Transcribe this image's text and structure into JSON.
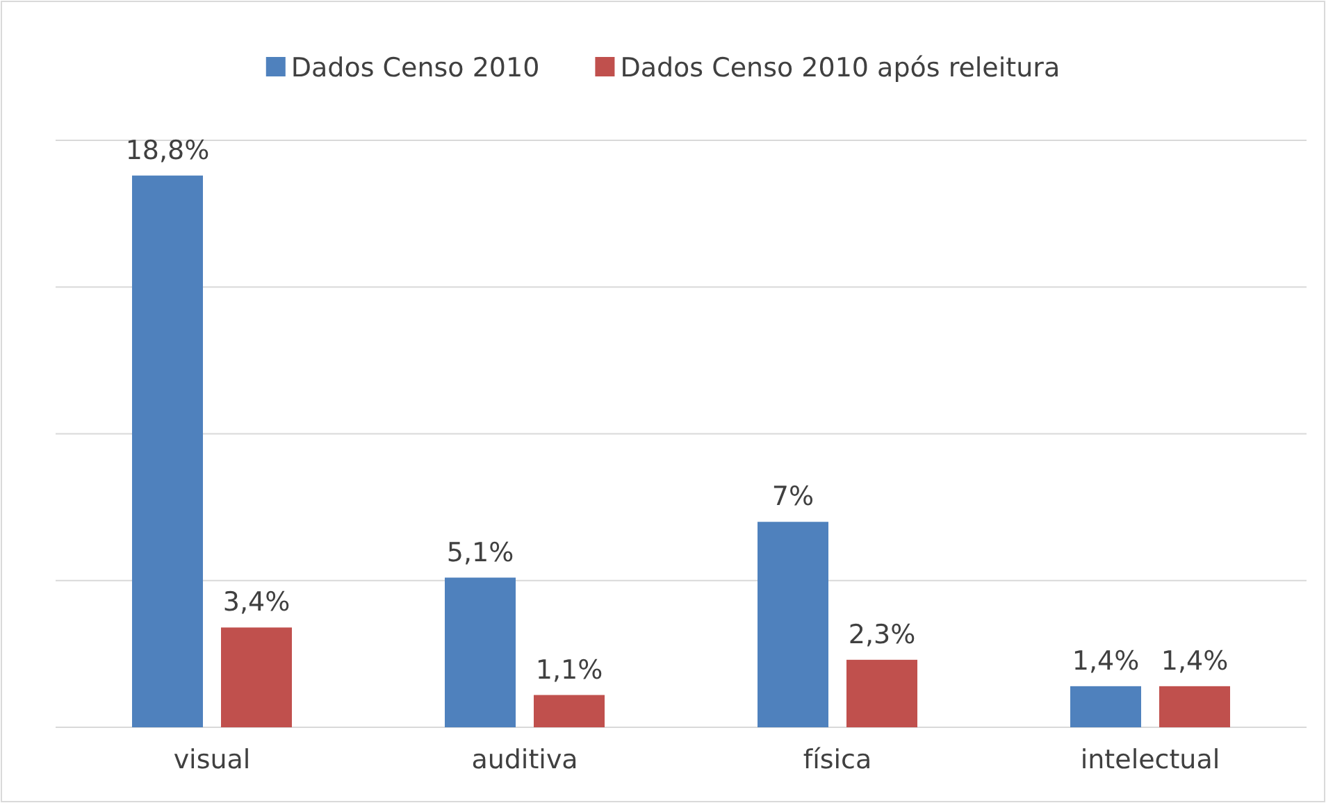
{
  "chart_data": {
    "type": "bar",
    "categories": [
      "visual",
      "auditiva",
      "física",
      "intelectual"
    ],
    "series": [
      {
        "name": "Dados Censo 2010",
        "color": "#4f81bd",
        "values": [
          18.8,
          5.1,
          7,
          1.4
        ],
        "value_labels": [
          "18,8%",
          "5,1%",
          "7%",
          "1,4%"
        ]
      },
      {
        "name": "Dados Censo 2010 após releitura",
        "color": "#c0504d",
        "values": [
          3.4,
          1.1,
          2.3,
          1.4
        ],
        "value_labels": [
          "3,4%",
          "1,1%",
          "2,3%",
          "1,4%"
        ]
      }
    ],
    "ylim": [
      0,
      20
    ],
    "yticks": [
      {
        "value": 0,
        "label": null
      },
      {
        "value": 5,
        "label": null
      },
      {
        "value": 10,
        "label": null
      },
      {
        "value": 15,
        "label": null
      },
      {
        "value": 20,
        "label": null
      }
    ],
    "grid": "y",
    "tick_labels": "x",
    "legend": "top"
  }
}
